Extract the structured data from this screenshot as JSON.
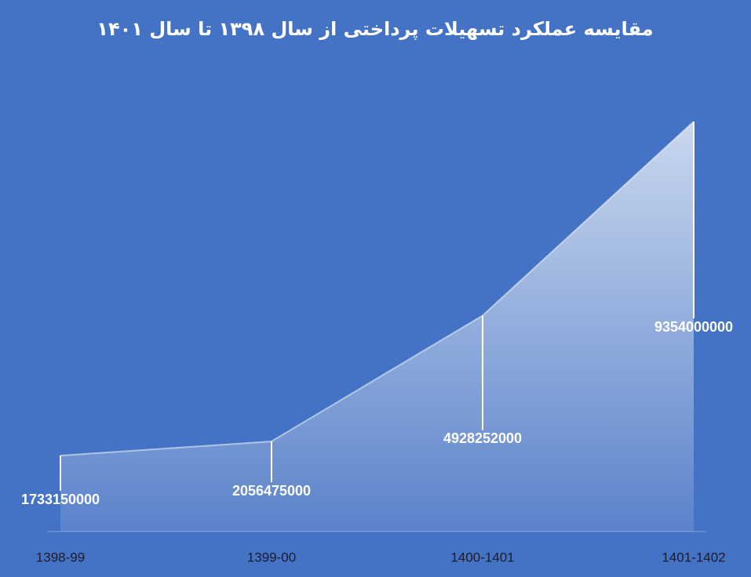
{
  "chart_data": {
    "type": "area",
    "title": "مقایسه عملکرد تسهیلات پرداختی از سال ۱۳۹۸ تا سال ۱۴۰۱",
    "categories": [
      "1398-99",
      "1399-00",
      "1400-1401",
      "1401-1402"
    ],
    "values": [
      1733150000,
      2056475000,
      4928252000,
      9354000000
    ],
    "color": "#ffffff",
    "ylim": [
      0,
      9354000000
    ]
  }
}
